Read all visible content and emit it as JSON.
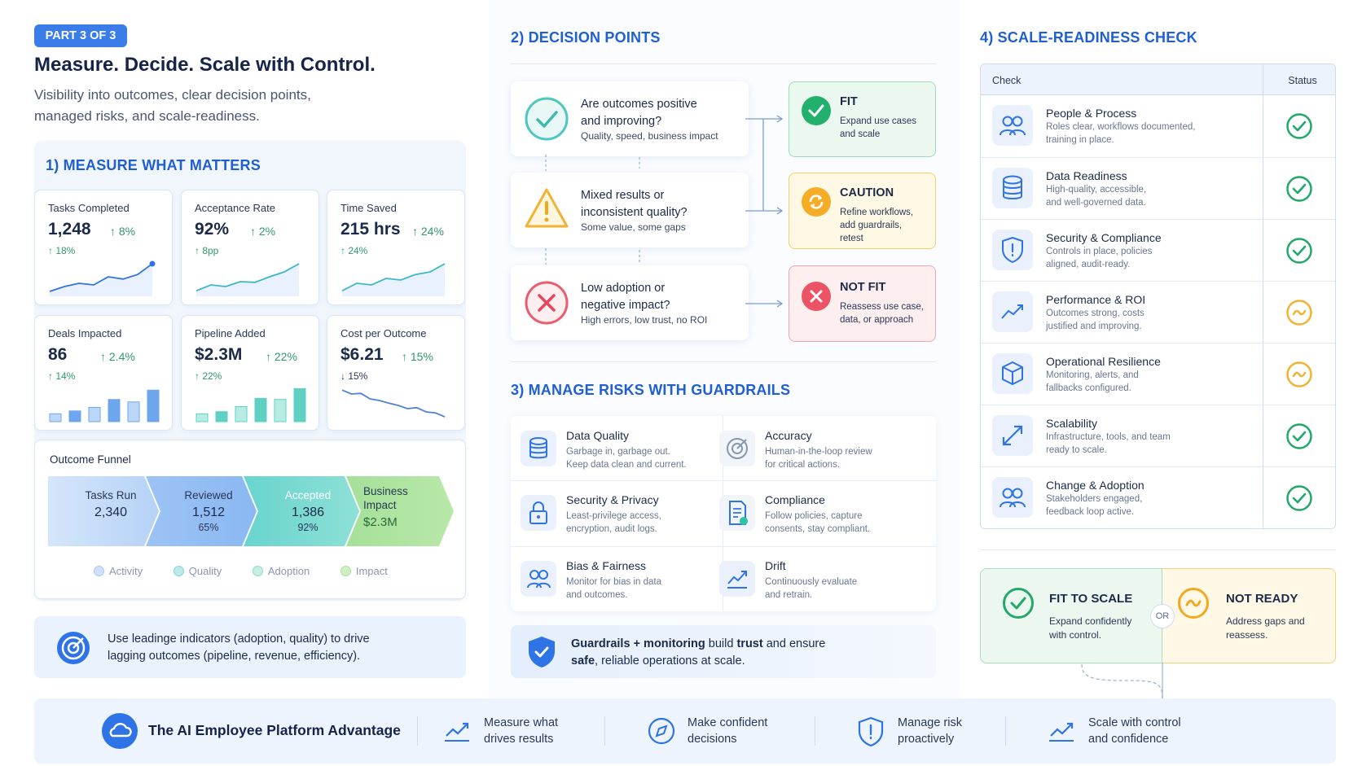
{
  "header": {
    "badge": "PART 3 OF 3",
    "title": "Measure. Decide. Scale with Control.",
    "subtitle_line1": "Visibility into outcomes, clear decision points,",
    "subtitle_line2": "managed risks, and scale-readiness."
  },
  "measure": {
    "title": "1) MEASURE WHAT MATTERS",
    "metrics": [
      {
        "label": "Tasks Completed",
        "value": "1,248",
        "delta": "↑ 8%",
        "sub": "↑ 18%",
        "chart": "line"
      },
      {
        "label": "Acceptance Rate",
        "value": "92%",
        "delta": "↑ 2%",
        "sub": "↑ 8pp",
        "chart": "line"
      },
      {
        "label": "Time Saved",
        "value": "215 hrs",
        "delta": "↑ 24%",
        "sub": "↑ 24%",
        "chart": "line"
      },
      {
        "label": "Deals Impacted",
        "value": "86",
        "delta": "↑ 2.4%",
        "sub": "↑ 14%",
        "chart": "bar"
      },
      {
        "label": "Pipeline Added",
        "value": "$2.3M",
        "delta": "↑ 22%",
        "sub": "↑ 22%",
        "chart": "bar"
      },
      {
        "label": "Cost per Outcome",
        "value": "$6.21",
        "delta": "↑ 15%",
        "sub": "↓ 15%",
        "chart": "line-down"
      }
    ],
    "funnel": {
      "title": "Outcome Funnel",
      "stages": [
        {
          "name": "Tasks Run",
          "value": "2,340",
          "pct": ""
        },
        {
          "name": "Reviewed",
          "value": "1,512",
          "pct": "65%"
        },
        {
          "name": "Accepted",
          "value": "1,386",
          "pct": "92%"
        },
        {
          "name": "Business\nImpact",
          "name1": "Business",
          "name2": "Impact",
          "value": "$2.3M",
          "pct": ""
        }
      ],
      "legend": [
        "Activity",
        "Quality",
        "Adoption",
        "Impact"
      ],
      "colors": [
        "#a9c8f4",
        "#7fd6dd",
        "#86ddc9",
        "#a9e29e"
      ]
    },
    "tip_line1": "Use leadinge indicators (adoption, quality) to drive",
    "tip_line2": "lagging outcomes (pipeline, revenue, efficiency)."
  },
  "decision": {
    "title": "2) DECISION POINTS",
    "questions": [
      {
        "q1": "Are outcomes positive",
        "q2": "and improving?",
        "sub": "Quality, speed, business impact"
      },
      {
        "q1": "Mixed results or",
        "q2": "inconsistent quality?",
        "sub": "Some value, some gaps"
      },
      {
        "q1": "Low adoption or",
        "q2": "negative impact?",
        "sub": "High errors, low trust, no ROI"
      }
    ],
    "outcomes": [
      {
        "title": "FIT",
        "d1": "Expand use cases",
        "d2": "and scale",
        "d3": ""
      },
      {
        "title": "CAUTION",
        "d1": "Refine workflows,",
        "d2": "add guardrails,",
        "d3": "retest"
      },
      {
        "title": "NOT FIT",
        "d1": "Reassess use case,",
        "d2": "data, or approach",
        "d3": ""
      }
    ]
  },
  "risks": {
    "title": "3) MANAGE RISKS WITH GUARDRAILS",
    "items": [
      {
        "title": "Data Quality",
        "d1": "Garbage in, garbage out.",
        "d2": "Keep data clean and current.",
        "icon": "database-icon"
      },
      {
        "title": "Accuracy",
        "d1": "Human-in-the-loop review",
        "d2": "for critical actions.",
        "icon": "target-icon"
      },
      {
        "title": "Security & Privacy",
        "d1": "Least-privilege access,",
        "d2": "encryption, audit logs.",
        "icon": "lock-icon"
      },
      {
        "title": "Compliance",
        "d1": "Follow policies, capture",
        "d2": "consents, stay compliant.",
        "icon": "document-check-icon"
      },
      {
        "title": "Bias & Fairness",
        "d1": "Monitor for bias in data",
        "d2": "and outcomes.",
        "icon": "people-icon"
      },
      {
        "title": "Drift",
        "d1": "Continuously evaluate",
        "d2": "and retrain.",
        "icon": "trend-icon"
      }
    ],
    "banner_bold1": "Guardrails + monitoring",
    "banner_mid": " build ",
    "banner_bold2": "trust",
    "banner_end": " and ensure",
    "banner_bold3": "safe",
    "banner_end2": ", reliable operations at scale."
  },
  "readiness": {
    "title": "4) SCALE-READINESS CHECK",
    "col_check": "Check",
    "col_status": "Status",
    "rows": [
      {
        "title": "People & Process",
        "d1": "Roles clear, workflows documented,",
        "d2": "training in place.",
        "status": "ready",
        "icon": "people-icon"
      },
      {
        "title": "Data Readiness",
        "d1": "High-quality, accessible,",
        "d2": "and well-governed data.",
        "status": "ready",
        "icon": "database-icon"
      },
      {
        "title": "Security & Compliance",
        "d1": "Controls in place, policies",
        "d2": "aligned, audit-ready.",
        "status": "ready",
        "icon": "shield-icon"
      },
      {
        "title": "Performance & ROI",
        "d1": "Outcomes strong, costs",
        "d2": "justified and improving.",
        "status": "partial",
        "icon": "trend-icon"
      },
      {
        "title": "Operational Resilience",
        "d1": "Monitoring, alerts, and",
        "d2": "fallbacks configured.",
        "status": "partial",
        "icon": "cube-icon"
      },
      {
        "title": "Scalability",
        "d1": "Infrastructure, tools, and team",
        "d2": "ready to scale.",
        "status": "ready",
        "icon": "expand-icon"
      },
      {
        "title": "Change & Adoption",
        "d1": "Stakeholders engaged,",
        "d2": "feedback loop active.",
        "status": "ready",
        "icon": "people-icon"
      }
    ],
    "fit_title": "FIT TO SCALE",
    "fit_d1": "Expand confidently",
    "fit_d2": "with control.",
    "or": "OR",
    "notready_title": "NOT READY",
    "notready_d1": "Address gaps and",
    "notready_d2": "reassess."
  },
  "footer": {
    "brand": "The AI Employee Platform Advantage",
    "items": [
      {
        "l1": "Measure what",
        "l2": "drives results",
        "icon": "trend-icon"
      },
      {
        "l1": "Make confident",
        "l2": "decisions",
        "icon": "compass-icon"
      },
      {
        "l1": "Manage risk",
        "l2": "proactively",
        "icon": "shield-icon"
      },
      {
        "l1": "Scale with control",
        "l2": "and confidence",
        "icon": "trend-icon"
      }
    ]
  },
  "colors": {
    "accent": "#1f5fd1",
    "green": "#22a86b",
    "amber": "#f2a81d",
    "red": "#e9445a"
  }
}
